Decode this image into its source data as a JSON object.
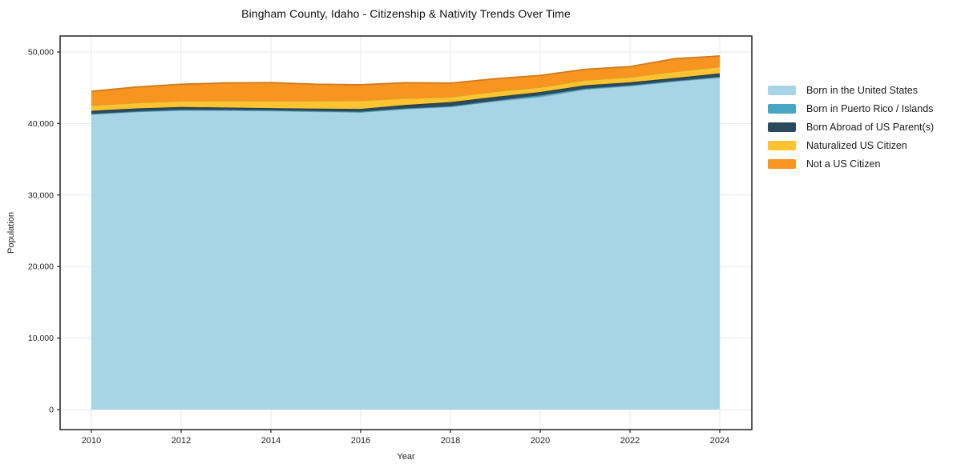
{
  "chart_data": {
    "type": "area",
    "stacked": true,
    "title": "Bingham County, Idaho - Citizenship & Nativity Trends Over Time",
    "xlabel": "Year",
    "ylabel": "Population",
    "grid": true,
    "legend_position": "right",
    "x": [
      2010,
      2011,
      2012,
      2013,
      2014,
      2015,
      2016,
      2017,
      2018,
      2019,
      2020,
      2021,
      2022,
      2023,
      2024
    ],
    "xtick_values": [
      2010,
      2012,
      2014,
      2016,
      2018,
      2020,
      2022,
      2024
    ],
    "xtick_labels": [
      "2010",
      "2012",
      "2014",
      "2016",
      "2018",
      "2020",
      "2022",
      "2024"
    ],
    "ytick_values": [
      0,
      10000,
      20000,
      30000,
      40000,
      50000
    ],
    "ytick_labels": [
      "0",
      "10,000",
      "20,000",
      "30,000",
      "40,000",
      "50,000"
    ],
    "ylim": [
      0,
      52300
    ],
    "series": [
      {
        "name": "Born in the United States",
        "color": "#a8d4e8",
        "values": [
          41300,
          41650,
          41870,
          41850,
          41800,
          41690,
          41600,
          42060,
          42360,
          43140,
          43730,
          44780,
          45270,
          45900,
          46450
        ]
      },
      {
        "name": "Born in Puerto Rico / Islands",
        "color": "#45a7c4",
        "values": [
          60,
          60,
          60,
          60,
          60,
          60,
          60,
          60,
          60,
          70,
          230,
          100,
          80,
          80,
          80
        ]
      },
      {
        "name": "Born Abroad of US Parent(s)",
        "color": "#2a4a5e",
        "values": [
          420,
          400,
          380,
          330,
          290,
          330,
          380,
          480,
          570,
          520,
          450,
          460,
          420,
          400,
          490
        ]
      },
      {
        "name": "Naturalized US Citizen",
        "color": "#fdc330",
        "values": [
          760,
          810,
          850,
          950,
          1010,
          1110,
          1180,
          940,
          740,
          750,
          670,
          740,
          730,
          900,
          930
        ]
      },
      {
        "name": "Not a US Citizen",
        "color": "#f89420",
        "values": [
          1960,
          2180,
          2340,
          2480,
          2560,
          2310,
          2200,
          2160,
          1920,
          1790,
          1640,
          1500,
          1460,
          1790,
          1490
        ]
      }
    ]
  }
}
